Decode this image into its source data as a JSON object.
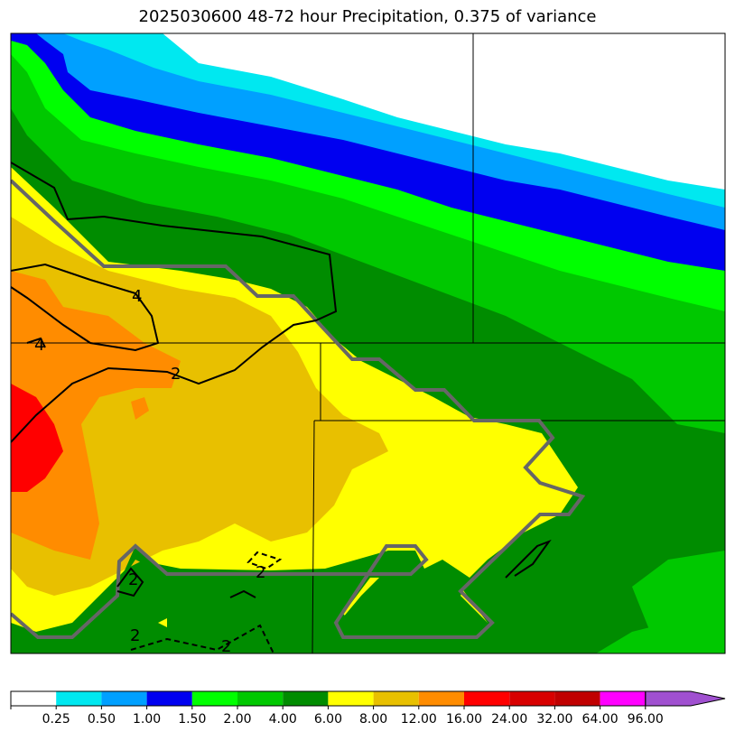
{
  "title": "2025030600 48-72 hour Precipitation, 0.375 of variance",
  "colorbar": {
    "colors": [
      "#ffffff",
      "#00e8f0",
      "#00a0ff",
      "#0000f0",
      "#00ff00",
      "#00c800",
      "#008c00",
      "#ffff00",
      "#e8c000",
      "#ff8c00",
      "#ff0000",
      "#d80000",
      "#c00000",
      "#ff00ff",
      "#a050d0"
    ],
    "tick_labels": [
      "0.25",
      "0.50",
      "1.00",
      "1.50",
      "2.00",
      "4.00",
      "6.00",
      "8.00",
      "12.00",
      "16.00",
      "24.00",
      "32.00",
      "64.00",
      "96.00"
    ],
    "extend": "max"
  },
  "contour_labels": [
    "4",
    "2",
    "4",
    "2",
    "2",
    "2",
    "2"
  ]
}
